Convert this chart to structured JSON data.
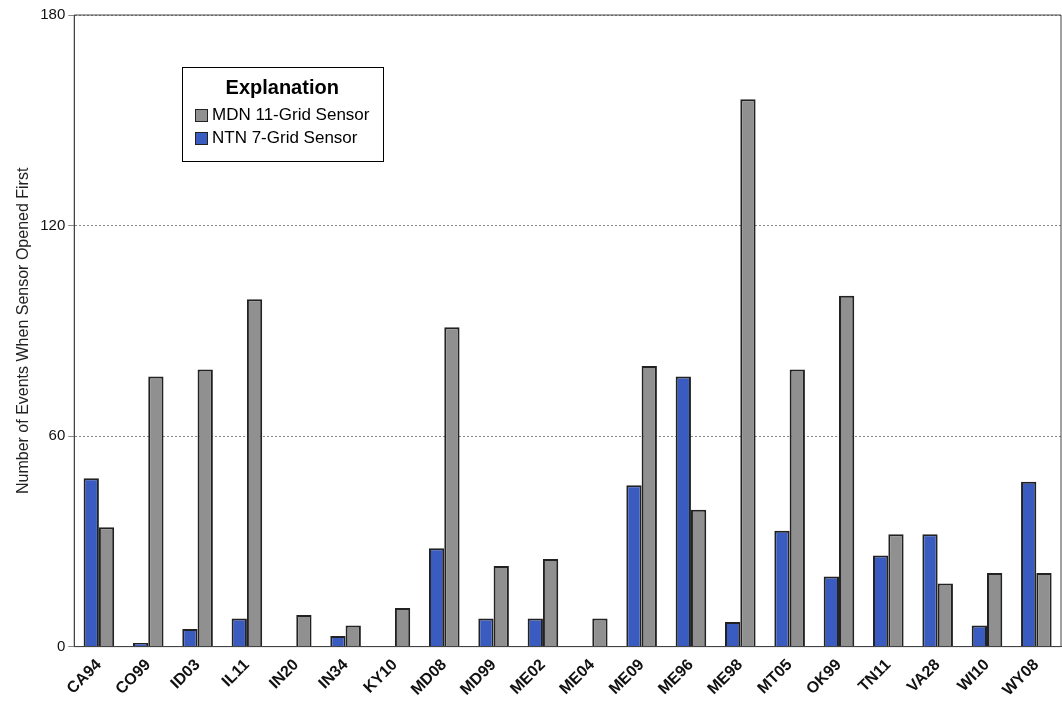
{
  "chart_data": {
    "type": "bar",
    "ylabel": "Number of Events When Sensor Opened First",
    "legend_title": "Explanation",
    "categories": [
      "CA94",
      "CO99",
      "ID03",
      "IL11",
      "IN20",
      "IN34",
      "KY10",
      "MD08",
      "MD99",
      "ME02",
      "ME04",
      "ME09",
      "ME96",
      "ME98",
      "MT05",
      "OK99",
      "TN11",
      "VA28",
      "WI10",
      "WY08"
    ],
    "series": [
      {
        "name": "NTN 7-Grid Sensor",
        "color": "#3a5bbf",
        "values": [
          48,
          1,
          5,
          8,
          0,
          3,
          0,
          28,
          8,
          8,
          0,
          46,
          77,
          7,
          33,
          20,
          26,
          32,
          6,
          47
        ]
      },
      {
        "name": "MDN 11-Grid Sensor",
        "color": "#909090",
        "values": [
          34,
          77,
          79,
          99,
          9,
          6,
          11,
          91,
          23,
          25,
          8,
          80,
          39,
          156,
          79,
          100,
          32,
          18,
          21,
          21
        ]
      }
    ],
    "ylim": [
      0,
      180
    ],
    "yticks": [
      0,
      60,
      120,
      180
    ],
    "grid": "y",
    "legend": "top left"
  }
}
